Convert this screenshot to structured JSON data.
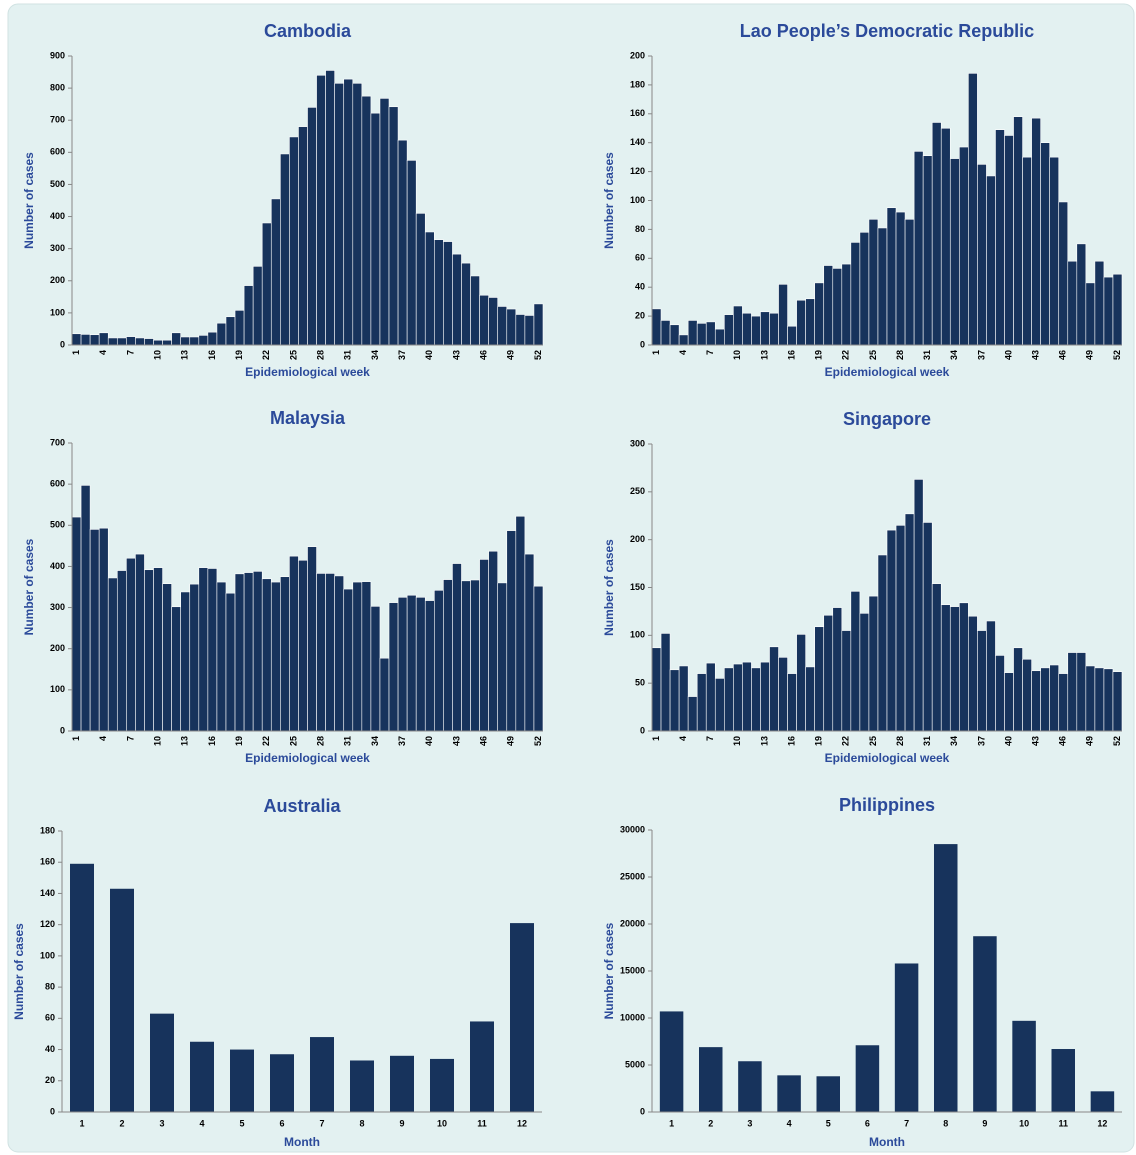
{
  "chart_data": [
    {
      "type": "bar",
      "title": "Cambodia",
      "x_label": "Epidemiological week",
      "y_label": "Number of cases",
      "categories": [
        1,
        null,
        null,
        4,
        null,
        null,
        7,
        null,
        null,
        10,
        null,
        null,
        13,
        null,
        null,
        16,
        null,
        null,
        19,
        null,
        null,
        22,
        null,
        null,
        25,
        null,
        null,
        28,
        null,
        null,
        31,
        null,
        null,
        34,
        null,
        null,
        37,
        null,
        null,
        40,
        null,
        null,
        43,
        null,
        null,
        46,
        null,
        null,
        49,
        null,
        null,
        52
      ],
      "values": [
        35,
        33,
        32,
        38,
        22,
        22,
        26,
        22,
        20,
        15,
        15,
        38,
        25,
        25,
        30,
        40,
        68,
        88,
        108,
        185,
        245,
        380,
        455,
        595,
        648,
        680,
        740,
        840,
        855,
        815,
        828,
        815,
        775,
        722,
        768,
        742,
        638,
        575,
        410,
        352,
        328,
        322,
        283,
        255,
        215,
        155,
        148,
        120,
        112,
        95,
        92,
        128
      ],
      "color": "#17335c",
      "ylim": [
        0,
        900
      ],
      "yticks": [
        0,
        100,
        200,
        300,
        400,
        500,
        600,
        700,
        800,
        900
      ]
    },
    {
      "type": "bar",
      "title": "Lao People’s Democratic Republic",
      "x_label": "Epidemiological week",
      "y_label": "Number of cases",
      "categories": [
        1,
        null,
        null,
        4,
        null,
        null,
        7,
        null,
        null,
        10,
        null,
        null,
        13,
        null,
        null,
        16,
        null,
        null,
        19,
        null,
        null,
        22,
        null,
        null,
        25,
        null,
        null,
        28,
        null,
        null,
        31,
        null,
        null,
        34,
        null,
        null,
        37,
        null,
        null,
        40,
        null,
        null,
        43,
        null,
        null,
        46,
        null,
        null,
        49,
        null,
        null,
        52
      ],
      "values": [
        25,
        17,
        14,
        7,
        17,
        15,
        16,
        11,
        21,
        27,
        22,
        20,
        23,
        22,
        42,
        13,
        31,
        32,
        43,
        55,
        53,
        56,
        71,
        78,
        87,
        81,
        95,
        92,
        87,
        134,
        131,
        154,
        150,
        129,
        137,
        188,
        125,
        117,
        149,
        145,
        158,
        130,
        157,
        140,
        130,
        99,
        58,
        70,
        43,
        58,
        47,
        49
      ],
      "color": "#17335c",
      "ylim": [
        0,
        200
      ],
      "yticks": [
        0,
        20,
        40,
        60,
        80,
        100,
        120,
        140,
        160,
        180,
        200
      ]
    },
    {
      "type": "bar",
      "title": "Malaysia",
      "x_label": "Epidemiological week",
      "y_label": "Number of cases",
      "categories": [
        1,
        null,
        null,
        4,
        null,
        null,
        7,
        null,
        null,
        10,
        null,
        null,
        13,
        null,
        null,
        16,
        null,
        null,
        19,
        null,
        null,
        22,
        null,
        null,
        25,
        null,
        null,
        28,
        null,
        null,
        31,
        null,
        null,
        34,
        null,
        null,
        37,
        null,
        null,
        40,
        null,
        null,
        43,
        null,
        null,
        46,
        null,
        null,
        49,
        null,
        null,
        52
      ],
      "values": [
        520,
        597,
        490,
        493,
        372,
        390,
        420,
        430,
        392,
        397,
        358,
        302,
        338,
        357,
        397,
        395,
        362,
        335,
        382,
        385,
        388,
        370,
        362,
        375,
        425,
        415,
        448,
        383,
        383,
        377,
        345,
        362,
        363,
        303,
        177,
        312,
        325,
        330,
        325,
        317,
        342,
        368,
        407,
        365,
        367,
        417,
        437,
        360,
        487,
        522,
        430,
        352
      ],
      "color": "#17335c",
      "ylim": [
        0,
        700
      ],
      "yticks": [
        0,
        100,
        200,
        300,
        400,
        500,
        600,
        700
      ]
    },
    {
      "type": "bar",
      "title": "Singapore",
      "x_label": "Epidemiological week",
      "y_label": "Number of cases",
      "categories": [
        1,
        null,
        null,
        4,
        null,
        null,
        7,
        null,
        null,
        10,
        null,
        null,
        13,
        null,
        null,
        16,
        null,
        null,
        19,
        null,
        null,
        22,
        null,
        null,
        25,
        null,
        null,
        28,
        null,
        null,
        31,
        null,
        null,
        34,
        null,
        null,
        37,
        null,
        null,
        40,
        null,
        null,
        43,
        null,
        null,
        46,
        null,
        null,
        49,
        null,
        null,
        52
      ],
      "values": [
        87,
        102,
        64,
        68,
        36,
        60,
        71,
        55,
        66,
        70,
        72,
        66,
        72,
        88,
        77,
        60,
        101,
        67,
        109,
        121,
        129,
        105,
        146,
        123,
        141,
        184,
        210,
        215,
        227,
        263,
        218,
        154,
        132,
        130,
        134,
        120,
        105,
        115,
        79,
        61,
        87,
        75,
        63,
        66,
        69,
        60,
        82,
        82,
        68,
        66,
        65,
        62
      ],
      "color": "#17335c",
      "ylim": [
        0,
        300
      ],
      "yticks": [
        0,
        50,
        100,
        150,
        200,
        250,
        300
      ]
    },
    {
      "type": "bar",
      "title": "Australia",
      "x_label": "Month",
      "y_label": "Number of cases",
      "categories": [
        1,
        2,
        3,
        4,
        5,
        6,
        7,
        8,
        9,
        10,
        11,
        12
      ],
      "values": [
        159,
        143,
        63,
        45,
        40,
        37,
        48,
        33,
        36,
        34,
        58,
        121
      ],
      "color": "#17335c",
      "ylim": [
        0,
        180
      ],
      "yticks": [
        0,
        20,
        40,
        60,
        80,
        100,
        120,
        140,
        160,
        180
      ]
    },
    {
      "type": "bar",
      "title": "Philippines",
      "x_label": "Month",
      "y_label": "Number of cases",
      "categories": [
        1,
        2,
        3,
        4,
        5,
        6,
        7,
        8,
        9,
        10,
        11,
        12
      ],
      "values": [
        10700,
        6900,
        5400,
        3900,
        3800,
        7100,
        15800,
        28500,
        18700,
        9700,
        6700,
        2200
      ],
      "color": "#17335c",
      "ylim": [
        0,
        30000
      ],
      "yticks": [
        0,
        5000,
        10000,
        15000,
        20000,
        25000,
        30000
      ]
    }
  ]
}
